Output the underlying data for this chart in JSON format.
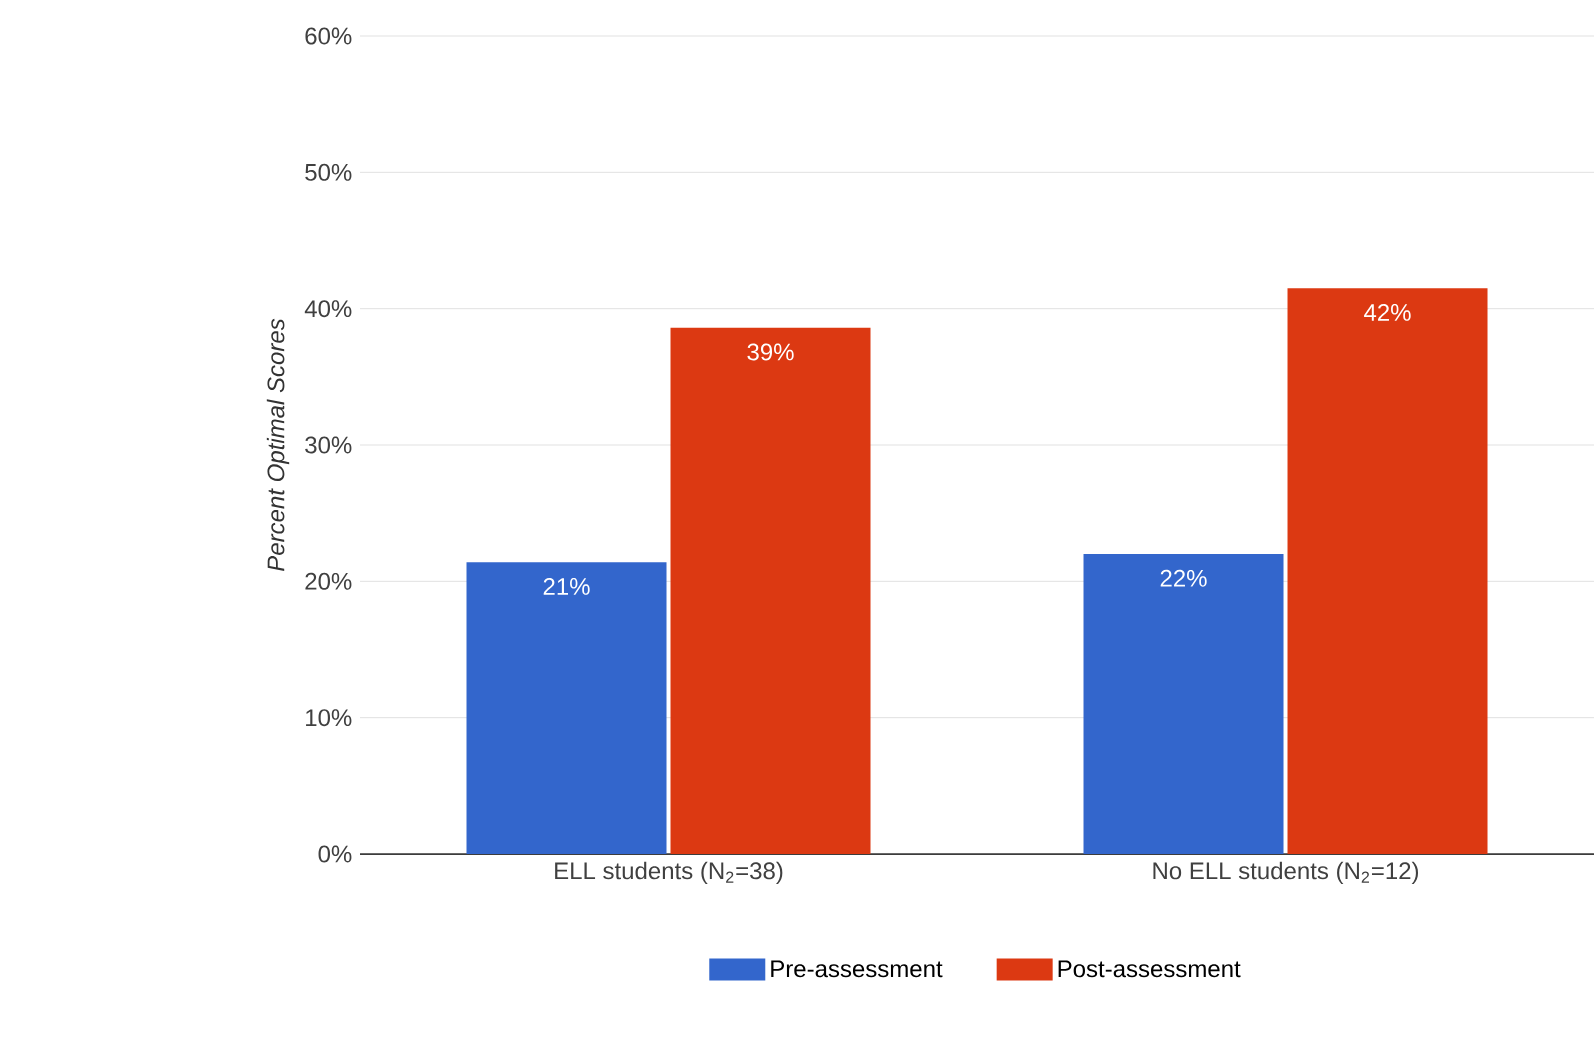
{
  "chart_data": {
    "type": "bar",
    "ylabel": "*Percent Optimal Scores*",
    "categories": [
      "ELL students (N$_{2}$=38)",
      "No ELL students (N$_{2}$=12)"
    ],
    "series": [
      {
        "name": "Pre-assessment",
        "color": "#3366cc",
        "values": [
          21.4,
          22.0
        ],
        "value_labels": [
          "21%",
          "22%"
        ]
      },
      {
        "name": "Post-assessment",
        "color": "#dc3912",
        "values": [
          38.6,
          41.5
        ],
        "value_labels": [
          "39%",
          "42%"
        ]
      }
    ],
    "ylim": [
      0,
      60
    ],
    "yticks": [
      {
        "value": 0,
        "label": "0%"
      },
      {
        "value": 10,
        "label": "10%"
      },
      {
        "value": 20,
        "label": "20%"
      },
      {
        "value": 30,
        "label": "30%"
      },
      {
        "value": 40,
        "label": "40%"
      },
      {
        "value": 50,
        "label": "50%"
      },
      {
        "value": 60,
        "label": "60%"
      }
    ],
    "grid": "y",
    "legend": "bottom"
  }
}
